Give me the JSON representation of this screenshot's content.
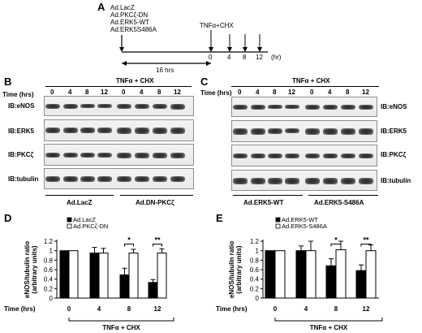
{
  "panelA": {
    "letter": "A",
    "constructs": [
      "Ad.LacZ",
      "Ad.PKCζ-DN",
      "Ad.ERK5-WT",
      "Ad.ERK5S486A"
    ],
    "treatment": "TNFα+CHX",
    "duration": "16 hrs",
    "ticks": [
      "0",
      "4",
      "8",
      "12"
    ],
    "unit": "(hr)"
  },
  "panelB": {
    "letter": "B",
    "header": "TNFα + CHX",
    "time_label": "Time (hrs)",
    "times": [
      "0",
      "4",
      "8",
      "12",
      "0",
      "4",
      "8",
      "12"
    ],
    "blots": [
      "IB:eNOS",
      "IB:ERK5",
      "IB:PKCζ",
      "IB:tubulin"
    ],
    "groups": [
      "Ad.LacZ",
      "Ad.DN-PKCζ"
    ]
  },
  "panelC": {
    "letter": "C",
    "header": "TNFα + CHX",
    "time_label": "Time (hrs)",
    "times": [
      "0",
      "4",
      "8",
      "12",
      "0",
      "4",
      "8",
      "12"
    ],
    "blots": [
      "IB:eNOS",
      "IB:ERK5",
      "IB:PKCζ",
      "IB:tubulin"
    ],
    "groups": [
      "Ad.ERK5-WT",
      "Ad.ERK5-S486A"
    ]
  },
  "panelD": {
    "letter": "D",
    "time_label": "Time (hrs)",
    "treatment": "TNFα + CHX",
    "ylabel": "eNOS/tubulin ratio\n(arbitrary units)"
  },
  "panelE": {
    "letter": "E",
    "time_label": "Time (hrs)",
    "treatment": "TNFα + CHX",
    "ylabel": "eNOS/tubulin ratio\n(arbitrary units)"
  },
  "chart_data": [
    {
      "type": "bar",
      "panel": "D",
      "categories": [
        "0",
        "4",
        "8",
        "12"
      ],
      "series": [
        {
          "name": "Ad.LacZ",
          "color": "#000000",
          "values": [
            1.0,
            0.95,
            0.49,
            0.33
          ],
          "errors": [
            0.0,
            0.12,
            0.14,
            0.06
          ]
        },
        {
          "name": "Ad.PKCζ-DN",
          "color": "#ffffff",
          "values": [
            1.0,
            0.95,
            0.95,
            0.95
          ],
          "errors": [
            0.0,
            0.1,
            0.08,
            0.09
          ]
        }
      ],
      "significance": [
        {
          "category": "8",
          "label": "*"
        },
        {
          "category": "12",
          "label": "**"
        }
      ],
      "ylim": [
        0,
        1.2
      ],
      "yticks": [
        "0",
        "0.2",
        "0.4",
        "0.6",
        "0.8",
        "1",
        "1.2"
      ],
      "legend": "top-left"
    },
    {
      "type": "bar",
      "panel": "E",
      "categories": [
        "0",
        "4",
        "8",
        "12"
      ],
      "series": [
        {
          "name": "Ad.ERK5-WT",
          "color": "#000000",
          "values": [
            1.0,
            1.0,
            0.68,
            0.58
          ],
          "errors": [
            0.0,
            0.1,
            0.15,
            0.12
          ]
        },
        {
          "name": "Ad.ERK5-S486A",
          "color": "#ffffff",
          "values": [
            1.0,
            1.0,
            1.02,
            1.0
          ],
          "errors": [
            0.0,
            0.2,
            0.18,
            0.12
          ]
        }
      ],
      "significance": [
        {
          "category": "8",
          "label": "*"
        },
        {
          "category": "12",
          "label": "**"
        }
      ],
      "ylim": [
        0,
        1.2
      ],
      "yticks": [
        "0",
        "0.2",
        "0.4",
        "0.6",
        "0.8",
        "1",
        "1.2"
      ],
      "legend": "top-left"
    }
  ]
}
